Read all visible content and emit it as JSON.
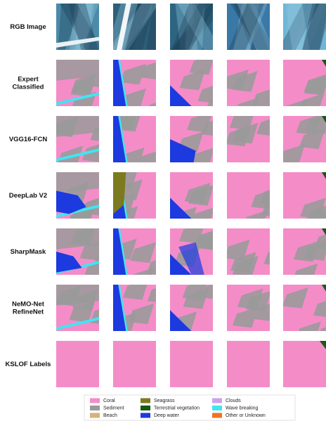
{
  "rows": [
    {
      "label": [
        "RGB Image"
      ]
    },
    {
      "label": [
        "Expert",
        "Classified"
      ]
    },
    {
      "label": [
        "VGG16-FCN"
      ]
    },
    {
      "label": [
        "DeepLab V2"
      ]
    },
    {
      "label": [
        "SharpMask"
      ]
    },
    {
      "label": [
        "NeMO-Net",
        "RefineNet"
      ]
    },
    {
      "label": [
        "KSLOF Labels"
      ]
    }
  ],
  "legend": [
    {
      "name": "Coral",
      "color": "#f48cc8"
    },
    {
      "name": "Sediment",
      "color": "#9a9a9a"
    },
    {
      "name": "Beach",
      "color": "#d6b27c"
    },
    {
      "name": "Seagrass",
      "color": "#7c7a1e"
    },
    {
      "name": "Terrestrial vegetation",
      "color": "#155a15"
    },
    {
      "name": "Deep water",
      "color": "#1c3ae0"
    },
    {
      "name": "Clouds",
      "color": "#c9a2f2"
    },
    {
      "name": "Wave breaking",
      "color": "#3fe6f2"
    },
    {
      "name": "Other or Unknown",
      "color": "#f07222"
    }
  ]
}
